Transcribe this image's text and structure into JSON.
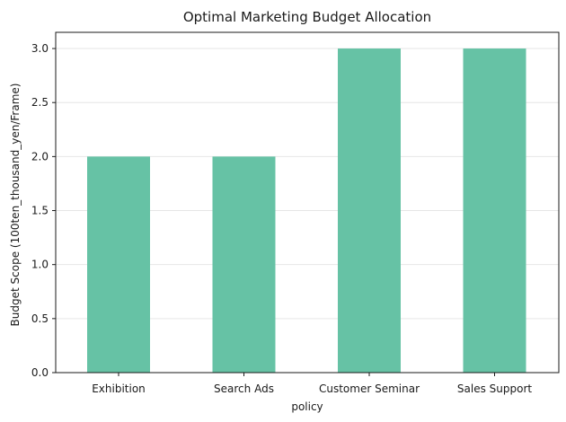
{
  "chart_data": {
    "type": "bar",
    "title": "Optimal Marketing Budget Allocation",
    "xlabel": "policy",
    "ylabel": "Budget Scope (100ten_thousand_yen/Frame)",
    "categories": [
      "Exhibition",
      "Search Ads",
      "Customer Seminar",
      "Sales Support"
    ],
    "values": [
      2,
      2,
      3,
      3
    ],
    "ylim": [
      0,
      3.15
    ],
    "yticks": [
      "0.0",
      "0.5",
      "1.0",
      "1.5",
      "2.0",
      "2.5",
      "3.0"
    ],
    "grid": "horizontal",
    "legend": "none",
    "bar_color": "#66c2a5"
  }
}
